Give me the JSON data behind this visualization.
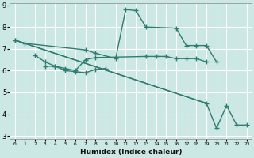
{
  "xlabel": "Humidex (Indice chaleur)",
  "background_color": "#cce8e4",
  "grid_color": "#ffffff",
  "line_color": "#2e7d70",
  "series": [
    {
      "x": [
        0,
        1,
        7,
        8,
        10,
        11,
        12,
        13,
        16,
        17,
        18,
        19,
        20
      ],
      "y": [
        7.4,
        7.25,
        6.95,
        6.8,
        6.55,
        8.8,
        8.75,
        8.0,
        7.95,
        7.15,
        7.15,
        7.15,
        6.4
      ]
    },
    {
      "x": [
        2,
        3,
        4,
        5,
        6,
        7,
        8,
        13,
        14,
        15,
        16,
        17,
        18,
        19
      ],
      "y": [
        6.7,
        6.4,
        6.2,
        6.1,
        6.0,
        6.5,
        6.6,
        6.65,
        6.65,
        6.65,
        6.55,
        6.55,
        6.55,
        6.4
      ]
    },
    {
      "x": [
        3,
        4,
        5,
        6,
        7,
        8,
        9
      ],
      "y": [
        6.2,
        6.2,
        6.0,
        5.95,
        5.9,
        6.05,
        6.1
      ]
    },
    {
      "x": [
        0,
        19,
        20,
        21,
        22,
        23
      ],
      "y": [
        7.4,
        4.5,
        3.35,
        4.4,
        3.5,
        3.5
      ]
    }
  ],
  "xlim": [
    -0.5,
    23.5
  ],
  "ylim": [
    2.85,
    9.1
  ],
  "yticks": [
    3,
    4,
    5,
    6,
    7,
    8,
    9
  ],
  "xtick_labels": [
    "0",
    "1",
    "2",
    "3",
    "4",
    "5",
    "6",
    "7",
    "8",
    "9",
    "10",
    "11",
    "12",
    "13",
    "14",
    "15",
    "16",
    "17",
    "18",
    "19",
    "20",
    "21",
    "22",
    "23"
  ],
  "marker": "+",
  "markersize": 4,
  "linewidth": 1.0
}
